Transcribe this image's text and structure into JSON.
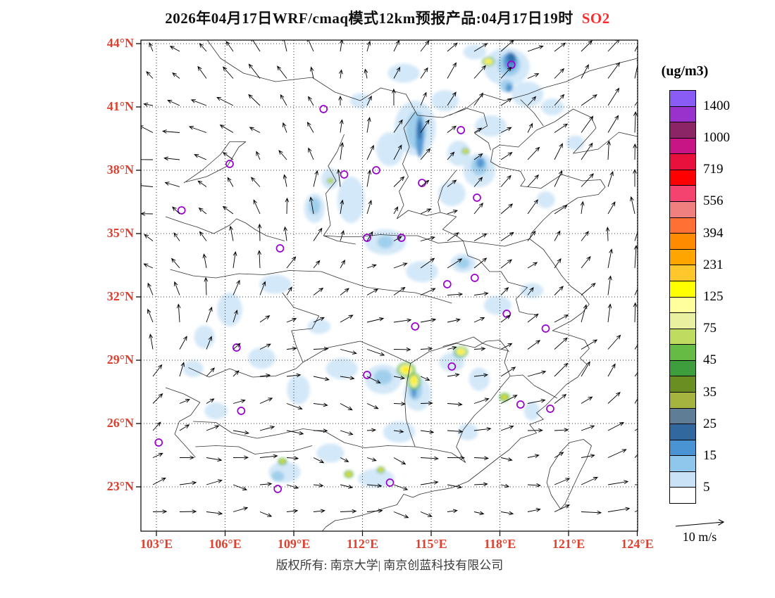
{
  "title": {
    "text": "2026年04月17日WRF/cmaq模式12km预报产品:04月17日19时",
    "pollutant": "SO2"
  },
  "axes": {
    "lat_labels": [
      "44°N",
      "41°N",
      "38°N",
      "35°N",
      "32°N",
      "29°N",
      "26°N",
      "23°N"
    ],
    "lon_labels": [
      "103°E",
      "106°E",
      "109°E",
      "112°E",
      "115°E",
      "118°E",
      "121°E",
      "124°E"
    ]
  },
  "colorbar": {
    "unit": "(ug/m3)",
    "tick_labels": [
      "1400",
      "1000",
      "719",
      "556",
      "394",
      "231",
      "125",
      "75",
      "45",
      "35",
      "25",
      "15",
      "5"
    ],
    "segment_colors": [
      "#8A5CF6",
      "#9932CC",
      "#8B2565",
      "#C71585",
      "#E8113D",
      "#FF0000",
      "#F4436E",
      "#F08080",
      "#FF7034",
      "#FF8C00",
      "#FFA500",
      "#FFC72C",
      "#FFFF00",
      "#FFFF9E",
      "#E9F0A0",
      "#BFDB60",
      "#66BB44",
      "#3E9E3E",
      "#6B8E23",
      "#A4B43F",
      "#5F7E96",
      "#31699E",
      "#4A94D4",
      "#8FC6EC",
      "#C9E2F6",
      "#FFFFFF"
    ]
  },
  "wind_legend": {
    "label": "10 m/s"
  },
  "footer": {
    "copyright": "版权所有: 南京大学| 南京创蓝科技有限公司"
  },
  "chart_data": {
    "type": "heatmap",
    "title": "2026年04月17日WRF/cmaq模式12km预报产品:04月17日19时 SO2",
    "pollutant": "SO2",
    "unit": "ug/m3",
    "forecast_date": "2026-04-17",
    "forecast_hour": "19时",
    "model": "WRF/cmaq 12km",
    "lon_range": [
      103,
      124
    ],
    "lat_range": [
      23,
      44
    ],
    "lon_ticks": [
      103,
      106,
      109,
      112,
      115,
      118,
      121,
      124
    ],
    "lat_ticks": [
      44,
      41,
      38,
      35,
      32,
      29,
      26,
      23
    ],
    "concentration_levels": [
      5,
      15,
      25,
      35,
      45,
      75,
      125,
      231,
      394,
      556,
      719,
      1000,
      1400
    ],
    "wind_reference_ms": 10,
    "city_markers": [
      {
        "lon": 118.5,
        "lat": 43.0
      },
      {
        "lon": 116.3,
        "lat": 39.9
      },
      {
        "lon": 110.3,
        "lat": 40.9
      },
      {
        "lon": 106.2,
        "lat": 38.3
      },
      {
        "lon": 112.6,
        "lat": 38.0
      },
      {
        "lon": 111.2,
        "lat": 37.8
      },
      {
        "lon": 114.6,
        "lat": 37.4
      },
      {
        "lon": 104.1,
        "lat": 36.1
      },
      {
        "lon": 117.0,
        "lat": 36.7
      },
      {
        "lon": 112.2,
        "lat": 34.8
      },
      {
        "lon": 108.4,
        "lat": 34.3
      },
      {
        "lon": 113.7,
        "lat": 34.8
      },
      {
        "lon": 116.9,
        "lat": 32.9
      },
      {
        "lon": 115.7,
        "lat": 32.6
      },
      {
        "lon": 118.3,
        "lat": 31.2
      },
      {
        "lon": 120.0,
        "lat": 30.5
      },
      {
        "lon": 114.3,
        "lat": 30.6
      },
      {
        "lon": 106.5,
        "lat": 29.6
      },
      {
        "lon": 112.2,
        "lat": 28.3
      },
      {
        "lon": 115.9,
        "lat": 28.7
      },
      {
        "lon": 118.9,
        "lat": 26.9
      },
      {
        "lon": 106.7,
        "lat": 26.6
      },
      {
        "lon": 103.1,
        "lat": 25.1
      },
      {
        "lon": 108.3,
        "lat": 22.9
      },
      {
        "lon": 113.2,
        "lat": 23.2
      },
      {
        "lon": 120.2,
        "lat": 26.7
      }
    ],
    "so2_patches": [
      {
        "lon": 113.8,
        "lat": 42.6,
        "rlon": 0.7,
        "rlat": 0.45,
        "color": "#cfe6f7"
      },
      {
        "lon": 116.9,
        "lat": 43.6,
        "rlon": 0.5,
        "rlat": 0.35,
        "color": "#cfe6f7"
      },
      {
        "lon": 111.9,
        "lat": 41.3,
        "rlon": 0.45,
        "rlat": 0.35,
        "color": "#cfe6f7"
      },
      {
        "lon": 114.3,
        "lat": 40.0,
        "rlon": 0.9,
        "rlat": 1.3,
        "color": "#cfe6f7"
      },
      {
        "lon": 113.2,
        "lat": 39.0,
        "rlon": 0.6,
        "rlat": 0.8,
        "color": "#cfe6f7"
      },
      {
        "lon": 115.6,
        "lat": 41.3,
        "rlon": 0.6,
        "rlat": 0.5,
        "color": "#cfe6f7"
      },
      {
        "lon": 118.3,
        "lat": 42.9,
        "rlon": 1.0,
        "rlat": 0.9,
        "color": "#cfe6f7"
      },
      {
        "lon": 119.2,
        "lat": 41.6,
        "rlon": 0.7,
        "rlat": 0.6,
        "color": "#cfe6f7"
      },
      {
        "lon": 117.6,
        "lat": 40.1,
        "rlon": 0.7,
        "rlat": 0.5,
        "color": "#cfe6f7"
      },
      {
        "lon": 120.3,
        "lat": 41.0,
        "rlon": 0.5,
        "rlat": 0.4,
        "color": "#cfe6f7"
      },
      {
        "lon": 121.3,
        "lat": 39.3,
        "rlon": 0.4,
        "rlat": 0.35,
        "color": "#cfe6f7"
      },
      {
        "lon": 116.2,
        "lat": 38.8,
        "rlon": 0.5,
        "rlat": 0.6,
        "color": "#cfe6f7"
      },
      {
        "lon": 117.1,
        "lat": 38.0,
        "rlon": 0.7,
        "rlat": 0.8,
        "color": "#cfe6f7"
      },
      {
        "lon": 115.9,
        "lat": 36.9,
        "rlon": 0.6,
        "rlat": 0.6,
        "color": "#cfe6f7"
      },
      {
        "lon": 120.0,
        "lat": 36.6,
        "rlon": 0.4,
        "rlat": 0.4,
        "color": "#cfe6f7"
      },
      {
        "lon": 111.5,
        "lat": 36.6,
        "rlon": 0.6,
        "rlat": 1.1,
        "color": "#cfe6f7"
      },
      {
        "lon": 109.9,
        "lat": 36.2,
        "rlon": 0.45,
        "rlat": 0.7,
        "color": "#cfe6f7"
      },
      {
        "lon": 110.6,
        "lat": 37.6,
        "rlon": 0.4,
        "rlat": 0.5,
        "color": "#cfe6f7"
      },
      {
        "lon": 113.0,
        "lat": 34.6,
        "rlon": 0.9,
        "rlat": 0.6,
        "color": "#cfe6f7"
      },
      {
        "lon": 114.6,
        "lat": 33.2,
        "rlon": 0.7,
        "rlat": 0.5,
        "color": "#cfe6f7"
      },
      {
        "lon": 116.4,
        "lat": 33.6,
        "rlon": 0.55,
        "rlat": 0.45,
        "color": "#cfe6f7"
      },
      {
        "lon": 117.9,
        "lat": 31.6,
        "rlon": 0.6,
        "rlat": 0.45,
        "color": "#cfe6f7"
      },
      {
        "lon": 119.4,
        "lat": 32.3,
        "rlon": 0.5,
        "rlat": 0.35,
        "color": "#cfe6f7"
      },
      {
        "lon": 108.2,
        "lat": 32.6,
        "rlon": 0.7,
        "rlat": 0.45,
        "color": "#cfe6f7"
      },
      {
        "lon": 106.2,
        "lat": 31.4,
        "rlon": 0.55,
        "rlat": 0.8,
        "color": "#cfe6f7"
      },
      {
        "lon": 105.1,
        "lat": 30.1,
        "rlon": 0.45,
        "rlat": 0.55,
        "color": "#cfe6f7"
      },
      {
        "lon": 107.6,
        "lat": 29.1,
        "rlon": 0.6,
        "rlat": 0.5,
        "color": "#cfe6f7"
      },
      {
        "lon": 109.2,
        "lat": 27.6,
        "rlon": 0.5,
        "rlat": 0.7,
        "color": "#cfe6f7"
      },
      {
        "lon": 111.1,
        "lat": 28.6,
        "rlon": 0.7,
        "rlat": 0.5,
        "color": "#cfe6f7"
      },
      {
        "lon": 112.9,
        "lat": 28.1,
        "rlon": 0.8,
        "rlat": 0.7,
        "color": "#cfe6f7"
      },
      {
        "lon": 114.4,
        "lat": 27.4,
        "rlon": 0.6,
        "rlat": 0.8,
        "color": "#cfe6f7"
      },
      {
        "lon": 115.9,
        "lat": 28.9,
        "rlon": 0.55,
        "rlat": 0.45,
        "color": "#cfe6f7"
      },
      {
        "lon": 117.1,
        "lat": 28.1,
        "rlon": 0.45,
        "rlat": 0.55,
        "color": "#cfe6f7"
      },
      {
        "lon": 113.6,
        "lat": 25.6,
        "rlon": 0.7,
        "rlat": 0.5,
        "color": "#cfe6f7"
      },
      {
        "lon": 110.6,
        "lat": 24.6,
        "rlon": 0.6,
        "rlat": 0.45,
        "color": "#cfe6f7"
      },
      {
        "lon": 108.6,
        "lat": 23.7,
        "rlon": 0.7,
        "rlat": 0.5,
        "color": "#cfe6f7"
      },
      {
        "lon": 112.6,
        "lat": 23.4,
        "rlon": 0.8,
        "rlat": 0.45,
        "color": "#cfe6f7"
      },
      {
        "lon": 116.6,
        "lat": 25.6,
        "rlon": 0.45,
        "rlat": 0.4,
        "color": "#cfe6f7"
      },
      {
        "lon": 119.4,
        "lat": 26.6,
        "rlon": 0.35,
        "rlat": 0.45,
        "color": "#cfe6f7"
      },
      {
        "lon": 105.6,
        "lat": 26.6,
        "rlon": 0.5,
        "rlat": 0.4,
        "color": "#cfe6f7"
      },
      {
        "lon": 104.6,
        "lat": 28.6,
        "rlon": 0.45,
        "rlat": 0.4,
        "color": "#cfe6f7"
      },
      {
        "lon": 110.1,
        "lat": 30.6,
        "rlon": 0.5,
        "rlat": 0.35,
        "color": "#cfe6f7"
      },
      {
        "lon": 114.35,
        "lat": 39.9,
        "rlon": 0.45,
        "rlat": 0.9,
        "color": "#9ccdec"
      },
      {
        "lon": 118.4,
        "lat": 43.0,
        "rlon": 0.5,
        "rlat": 0.55,
        "color": "#9ccdec"
      },
      {
        "lon": 117.1,
        "lat": 38.2,
        "rlon": 0.35,
        "rlat": 0.45,
        "color": "#9ccdec"
      },
      {
        "lon": 113.0,
        "lat": 34.6,
        "rlon": 0.35,
        "rlat": 0.3,
        "color": "#9ccdec"
      },
      {
        "lon": 112.9,
        "lat": 28.2,
        "rlon": 0.4,
        "rlat": 0.35,
        "color": "#9ccdec"
      },
      {
        "lon": 114.3,
        "lat": 27.6,
        "rlon": 0.3,
        "rlat": 0.5,
        "color": "#9ccdec"
      },
      {
        "lon": 116.25,
        "lat": 29.35,
        "rlon": 0.3,
        "rlat": 0.28,
        "color": "#9ccdec"
      },
      {
        "lon": 108.3,
        "lat": 23.5,
        "rlon": 0.28,
        "rlat": 0.25,
        "color": "#9ccdec"
      },
      {
        "lon": 116.4,
        "lat": 33.6,
        "rlon": 0.28,
        "rlat": 0.25,
        "color": "#9ccdec"
      },
      {
        "lon": 118.3,
        "lat": 42.0,
        "rlon": 0.3,
        "rlat": 0.3,
        "color": "#9ccdec"
      },
      {
        "lon": 109.9,
        "lat": 36.3,
        "rlon": 0.25,
        "rlat": 0.4,
        "color": "#9ccdec"
      },
      {
        "lon": 114.5,
        "lat": 39.6,
        "rlon": 0.18,
        "rlat": 1.0,
        "color": "#4f94d0"
      },
      {
        "lon": 118.45,
        "lat": 43.15,
        "rlon": 0.3,
        "rlat": 0.45,
        "color": "#4f94d0"
      },
      {
        "lon": 117.15,
        "lat": 38.35,
        "rlon": 0.18,
        "rlat": 0.25,
        "color": "#4f94d0"
      },
      {
        "lon": 114.25,
        "lat": 27.7,
        "rlon": 0.13,
        "rlat": 0.5,
        "color": "#4f94d0"
      },
      {
        "lon": 118.4,
        "lat": 41.9,
        "rlon": 0.15,
        "rlat": 0.2,
        "color": "#4f94d0"
      },
      {
        "lon": 114.5,
        "lat": 39.9,
        "rlon": 0.1,
        "rlat": 0.45,
        "color": "#2a6aa5"
      },
      {
        "lon": 118.5,
        "lat": 43.3,
        "rlon": 0.18,
        "rlat": 0.25,
        "color": "#2a6aa5"
      },
      {
        "lon": 117.5,
        "lat": 43.15,
        "rlon": 0.28,
        "rlat": 0.22,
        "color": "#57b657"
      },
      {
        "lon": 113.9,
        "lat": 28.55,
        "rlon": 0.4,
        "rlat": 0.35,
        "color": "#57b657"
      },
      {
        "lon": 114.25,
        "lat": 28.0,
        "rlon": 0.3,
        "rlat": 0.4,
        "color": "#57b657"
      },
      {
        "lon": 116.3,
        "lat": 29.4,
        "rlon": 0.3,
        "rlat": 0.26,
        "color": "#57b657"
      },
      {
        "lon": 118.2,
        "lat": 27.25,
        "rlon": 0.22,
        "rlat": 0.2,
        "color": "#57b657"
      },
      {
        "lon": 112.8,
        "lat": 23.8,
        "rlon": 0.18,
        "rlat": 0.16,
        "color": "#57b657"
      },
      {
        "lon": 111.4,
        "lat": 23.6,
        "rlon": 0.2,
        "rlat": 0.18,
        "color": "#57b657"
      },
      {
        "lon": 108.5,
        "lat": 24.2,
        "rlon": 0.2,
        "rlat": 0.17,
        "color": "#57b657"
      },
      {
        "lon": 116.5,
        "lat": 38.9,
        "rlon": 0.17,
        "rlat": 0.15,
        "color": "#57b657"
      },
      {
        "lon": 110.6,
        "lat": 37.5,
        "rlon": 0.15,
        "rlat": 0.13,
        "color": "#57b657"
      },
      {
        "lon": 113.9,
        "lat": 28.55,
        "rlon": 0.3,
        "rlat": 0.26,
        "color": "#ffffa6"
      },
      {
        "lon": 114.25,
        "lat": 28.0,
        "rlon": 0.2,
        "rlat": 0.3,
        "color": "#ffffa6"
      },
      {
        "lon": 116.3,
        "lat": 29.4,
        "rlon": 0.22,
        "rlat": 0.19,
        "color": "#ffffa6"
      },
      {
        "lon": 117.5,
        "lat": 43.15,
        "rlon": 0.2,
        "rlat": 0.16,
        "color": "#ffffa6"
      },
      {
        "lon": 113.9,
        "lat": 28.55,
        "rlon": 0.2,
        "rlat": 0.17,
        "color": "#ffec00"
      },
      {
        "lon": 114.25,
        "lat": 28.05,
        "rlon": 0.12,
        "rlat": 0.22,
        "color": "#ffec00"
      },
      {
        "lon": 116.3,
        "lat": 29.4,
        "rlon": 0.14,
        "rlat": 0.12,
        "color": "#ffec00"
      },
      {
        "lon": 117.5,
        "lat": 43.15,
        "rlon": 0.13,
        "rlat": 0.1,
        "color": "#ffec00"
      },
      {
        "lon": 118.2,
        "lat": 27.25,
        "rlon": 0.11,
        "rlat": 0.1,
        "color": "#ffec00"
      },
      {
        "lon": 112.8,
        "lat": 23.8,
        "rlon": 0.1,
        "rlat": 0.08,
        "color": "#ffec00"
      },
      {
        "lon": 111.4,
        "lat": 23.6,
        "rlon": 0.11,
        "rlat": 0.09,
        "color": "#ffec00"
      },
      {
        "lon": 108.5,
        "lat": 24.2,
        "rlon": 0.1,
        "rlat": 0.08,
        "color": "#ffec00"
      },
      {
        "lon": 116.5,
        "lat": 38.9,
        "rlon": 0.1,
        "rlat": 0.08,
        "color": "#ffec00"
      },
      {
        "lon": 110.6,
        "lat": 37.5,
        "rlon": 0.08,
        "rlat": 0.07,
        "color": "#ffec00"
      }
    ]
  }
}
